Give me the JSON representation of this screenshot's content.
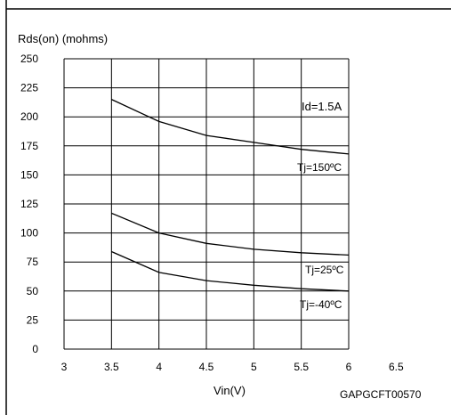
{
  "chart_data": {
    "type": "line",
    "ylabel": "Rds(on) (mohms)",
    "xlabel": "Vin(V)",
    "figure_code": "GAPGCFT00570",
    "condition_label": "Id=1.5A",
    "xlim": [
      3,
      6.5
    ],
    "ylim": [
      0,
      250
    ],
    "x_ticks": [
      "3",
      "3.5",
      "4",
      "4.5",
      "5",
      "5.5",
      "6",
      "6.5"
    ],
    "y_ticks": [
      "0",
      "25",
      "50",
      "75",
      "100",
      "125",
      "150",
      "175",
      "200",
      "225",
      "250"
    ],
    "grid": true,
    "series": [
      {
        "name": "Tj=150ºC",
        "x": [
          3.5,
          4,
          4.5,
          5,
          5.5,
          6
        ],
        "y": [
          215,
          196,
          184,
          178,
          172,
          168
        ]
      },
      {
        "name": "Tj=25ºC",
        "x": [
          3.5,
          4,
          4.5,
          5,
          5.5,
          6
        ],
        "y": [
          117,
          100,
          91,
          86,
          83,
          81
        ]
      },
      {
        "name": "Tj=-40ºC",
        "x": [
          3.5,
          4,
          4.5,
          5,
          5.5,
          6
        ],
        "y": [
          84,
          66,
          59,
          55,
          52,
          50
        ]
      }
    ]
  }
}
